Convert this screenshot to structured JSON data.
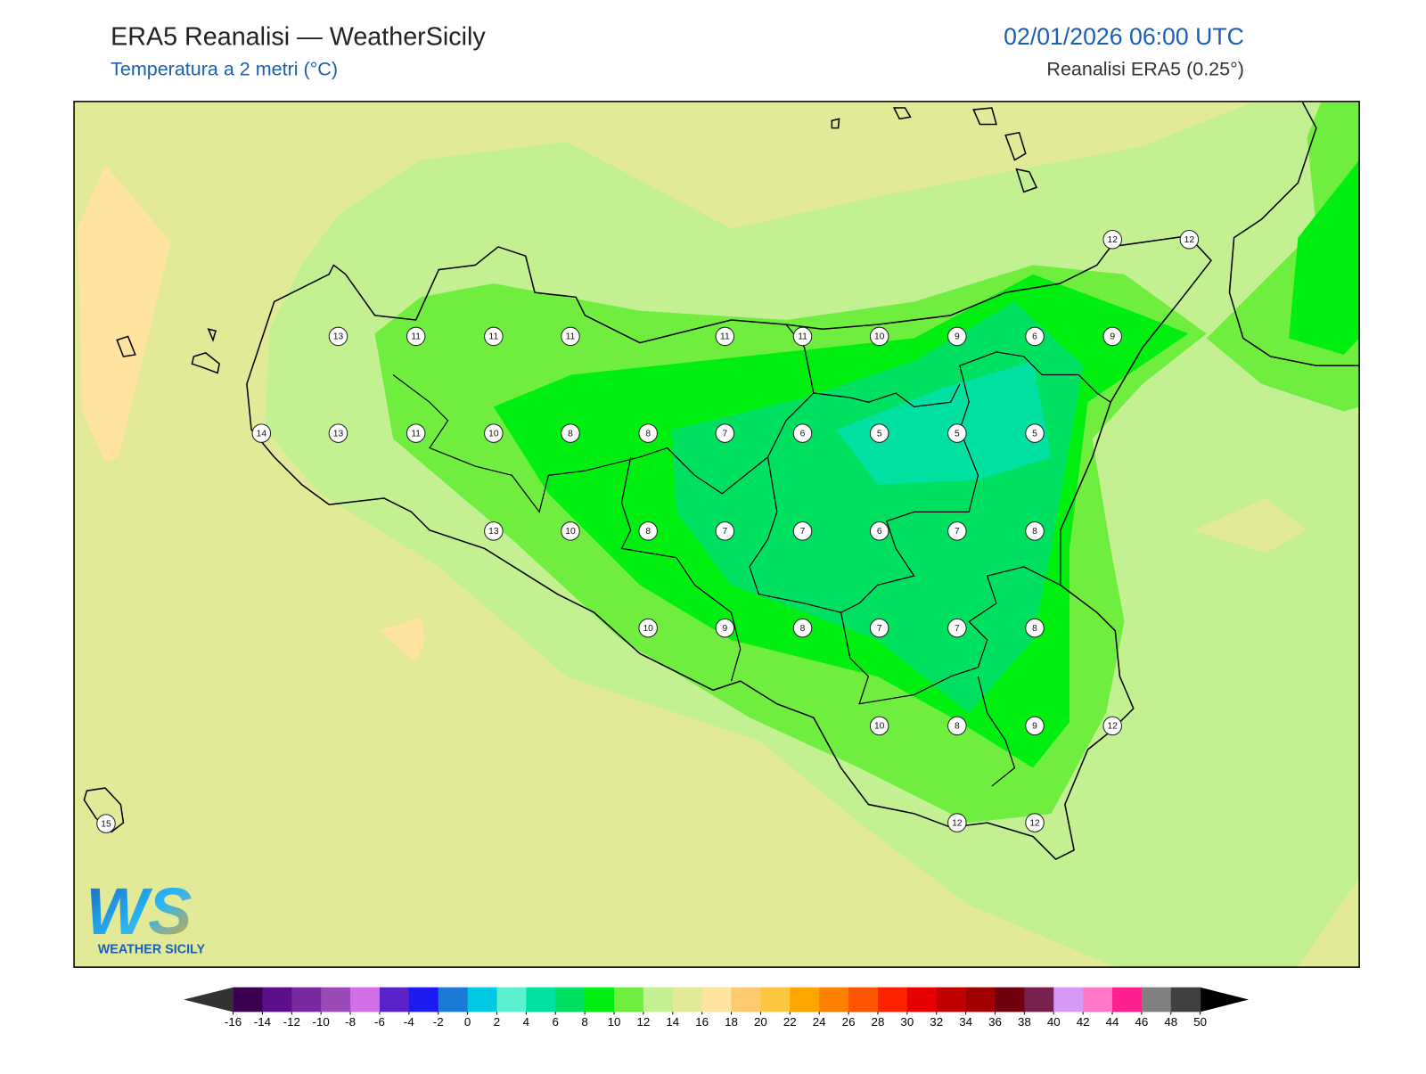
{
  "header": {
    "title": "ERA5 Reanalisi — WeatherSicily",
    "subtitle": "Temperatura a 2 metri (°C)",
    "datetime": "02/01/2026 06:00 UTC",
    "source": "Reanalisi ERA5 (0.25°)"
  },
  "stations": [
    12,
    12,
    13,
    11,
    11,
    11,
    11,
    11,
    10,
    9,
    6,
    9,
    14,
    13,
    11,
    10,
    8,
    8,
    7,
    6,
    5,
    5,
    5,
    13,
    10,
    8,
    7,
    7,
    6,
    7,
    8,
    10,
    9,
    8,
    7,
    7,
    8,
    10,
    8,
    9,
    12,
    15,
    12,
    12
  ],
  "logo": {
    "mark": "WS",
    "name": "WEATHER SICILY"
  },
  "colorbar": {
    "ticks": [
      -16,
      -14,
      -12,
      -10,
      -8,
      -6,
      -4,
      -2,
      0,
      2,
      4,
      6,
      8,
      10,
      12,
      14,
      16,
      18,
      20,
      22,
      24,
      26,
      28,
      30,
      32,
      34,
      36,
      38,
      40,
      42,
      44,
      46,
      48,
      50
    ],
    "colors": [
      "#3d0050",
      "#5b0f8a",
      "#7a2aa0",
      "#9a4bb8",
      "#d26ee6",
      "#5a22c8",
      "#1c1cf0",
      "#1a7ad6",
      "#00c8e0",
      "#5af0d0",
      "#00e0a0",
      "#00e060",
      "#00ee10",
      "#70ee40",
      "#c3f090",
      "#e2ea98",
      "#ffe4a0",
      "#fdca70",
      "#fcc640",
      "#ffa500",
      "#ff8000",
      "#ff5500",
      "#ff2200",
      "#e60000",
      "#c00000",
      "#a00000",
      "#700010",
      "#782050",
      "#d898f8",
      "#ff78c8",
      "#ff2090",
      "#808080",
      "#404040"
    ],
    "under_color": "#333333",
    "over_color": "#000000"
  }
}
